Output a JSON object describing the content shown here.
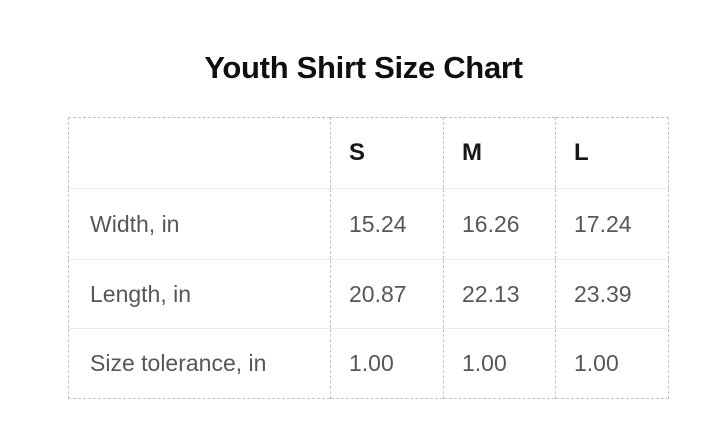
{
  "title": "Youth Shirt Size Chart",
  "table": {
    "columns": [
      "S",
      "M",
      "L"
    ],
    "rows": [
      {
        "label": "Width, in",
        "values": [
          "15.24",
          "16.26",
          "17.24"
        ]
      },
      {
        "label": "Length, in",
        "values": [
          "20.87",
          "22.13",
          "23.39"
        ]
      },
      {
        "label": "Size tolerance, in",
        "values": [
          "1.00",
          "1.00",
          "1.00"
        ]
      }
    ]
  },
  "chart_data": {
    "type": "table",
    "title": "Youth Shirt Size Chart",
    "columns": [
      "",
      "S",
      "M",
      "L"
    ],
    "rows": [
      [
        "Width, in",
        15.24,
        16.26,
        17.24
      ],
      [
        "Length, in",
        20.87,
        22.13,
        23.39
      ],
      [
        "Size tolerance, in",
        1.0,
        1.0,
        1.0
      ]
    ],
    "units": "inches"
  },
  "colors": {
    "background": "#ffffff",
    "title_text": "#0f0f0f",
    "header_text": "#171717",
    "cell_text": "#575757",
    "table_border_dashed": "#c3c3c3",
    "row_divider": "#ececec"
  }
}
